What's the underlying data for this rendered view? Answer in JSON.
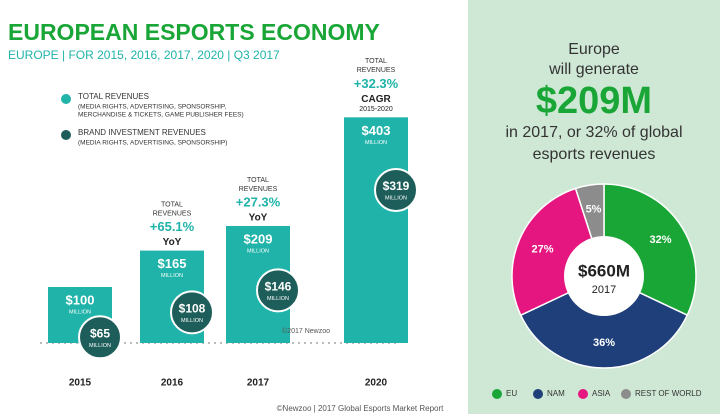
{
  "header": {
    "title": "EUROPEAN ESPORTS ECONOMY",
    "subtitle": "EUROPE | FOR 2015, 2016, 2017, 2020 | Q3 2017"
  },
  "chart_data": [
    {
      "type": "bar",
      "categories": [
        "2015",
        "2016",
        "2017",
        "2020"
      ],
      "series": [
        {
          "name": "TOTAL REVENUES",
          "description": [
            "(MEDIA RIGHTS, ADVERTISING, SPONSORSHIP,",
            "MERCHANDISE & TICKETS, GAME PUBLISHER FEES)"
          ],
          "color": "#1fb3a9",
          "values": [
            100,
            165,
            209,
            403
          ],
          "value_labels": [
            "$100",
            "$165",
            "$209",
            "$403"
          ]
        },
        {
          "name": "BRAND INVESTMENT REVENUES",
          "description": [
            "(MEDIA RIGHTS, ADVERTISING, SPONSORSHIP)"
          ],
          "color": "#1e5e5a",
          "values": [
            65,
            108,
            146,
            319
          ],
          "value_labels": [
            "$65",
            "$108",
            "$146",
            "$319"
          ]
        }
      ],
      "unit_label": "MILLION",
      "annotations": [
        null,
        {
          "lines": [
            "TOTAL",
            "REVENUES"
          ],
          "growth": "+65.1%",
          "basis": [
            "YoY"
          ]
        },
        {
          "lines": [
            "TOTAL",
            "REVENUES"
          ],
          "growth": "+27.3%",
          "basis": [
            "YoY"
          ]
        },
        {
          "lines": [
            "TOTAL",
            "REVENUES"
          ],
          "growth": "+32.3%",
          "basis": [
            "CAGR",
            "2015-2020"
          ]
        }
      ],
      "copyright": "©2017 Newzoo"
    },
    {
      "type": "pie",
      "categories": [
        "EU",
        "NAM",
        "ASIA",
        "REST OF WORLD"
      ],
      "values": [
        32,
        36,
        27,
        5
      ],
      "value_labels": [
        "32%",
        "36%",
        "27%",
        "5%"
      ],
      "colors": [
        "#1aa637",
        "#1f3f7a",
        "#e5167f",
        "#8c8c8c"
      ],
      "center_label": "$660M",
      "center_sublabel": "2017"
    }
  ],
  "callout": {
    "lines": [
      "Europe",
      "will generate"
    ],
    "amount": "$209M",
    "detail": [
      "in 2017, or 32% of global",
      "esports revenues"
    ]
  },
  "footer": "©Newzoo | 2017 Global Esports Market Report"
}
